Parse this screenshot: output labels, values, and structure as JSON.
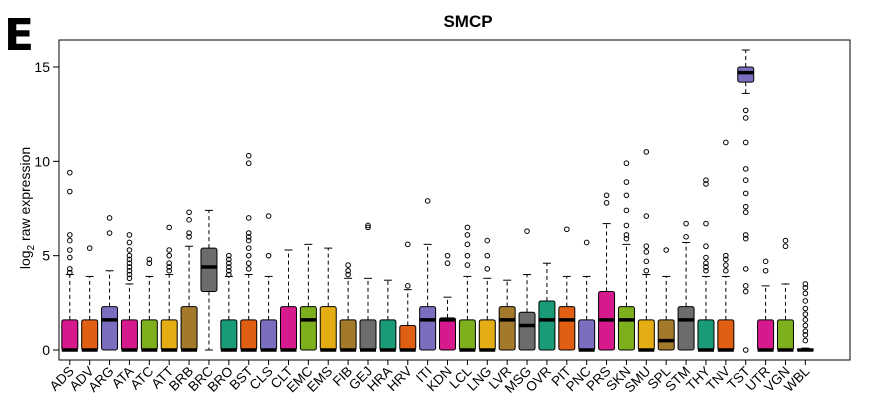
{
  "panel_label": "E",
  "chart_data": {
    "type": "box",
    "title": "SMCP",
    "xlabel": "",
    "ylabel_main": "log",
    "ylabel_sub": "2",
    "ylabel_rest": " raw expression",
    "ylim": [
      -0.5,
      16.5
    ],
    "yticks": [
      0,
      5,
      10,
      15
    ],
    "grid": false,
    "categories": [
      "ADS",
      "ADV",
      "ARG",
      "ATA",
      "ATC",
      "ATT",
      "BRB",
      "BRC",
      "BRO",
      "BST",
      "CLS",
      "CLT",
      "EMC",
      "EMS",
      "FIB",
      "GEJ",
      "HRA",
      "HRV",
      "ITI",
      "KDN",
      "LCL",
      "LNG",
      "LVR",
      "MSG",
      "OVR",
      "PIT",
      "PNC",
      "PRS",
      "SKN",
      "SMU",
      "SPL",
      "STM",
      "THY",
      "TNV",
      "TST",
      "UTR",
      "VGN",
      "WBL"
    ],
    "colors": [
      "#D6198D",
      "#E05F12",
      "#7A6FBE",
      "#D6198D",
      "#7EAF1C",
      "#E3AD13",
      "#A3792B",
      "#6C6C6C",
      "#1A9B78",
      "#E05F12",
      "#7A6FBE",
      "#D6198D",
      "#7EAF1C",
      "#E3AD13",
      "#A3792B",
      "#6C6C6C",
      "#1A9B78",
      "#E05F12",
      "#7A6FBE",
      "#D6198D",
      "#7EAF1C",
      "#E3AD13",
      "#A3792B",
      "#6C6C6C",
      "#1A9B78",
      "#E05F12",
      "#7A6FBE",
      "#D6198D",
      "#7EAF1C",
      "#E3AD13",
      "#A3792B",
      "#6C6C6C",
      "#1A9B78",
      "#E05F12",
      "#7A6FBE",
      "#D6198D",
      "#7EAF1C",
      "#E3AD13"
    ],
    "boxes": [
      {
        "q1": 0,
        "median": 0,
        "q3": 1.6,
        "whisker_low": 0,
        "whisker_high": 4.0,
        "outliers": [
          4.1,
          4.3,
          4.9,
          5.3,
          5.8,
          6.1,
          8.4,
          9.4
        ]
      },
      {
        "q1": 0,
        "median": 0,
        "q3": 1.6,
        "whisker_low": 0,
        "whisker_high": 3.9,
        "outliers": [
          5.4
        ]
      },
      {
        "q1": 0,
        "median": 1.6,
        "q3": 2.3,
        "whisker_low": 0,
        "whisker_high": 4.2,
        "outliers": [
          6.2,
          7.0
        ]
      },
      {
        "q1": 0,
        "median": 0,
        "q3": 1.6,
        "whisker_low": 0,
        "whisker_high": 3.5,
        "outliers": [
          3.8,
          4.0,
          4.2,
          4.4,
          4.6,
          4.8,
          5.0,
          5.3,
          5.7,
          6.1
        ]
      },
      {
        "q1": 0,
        "median": 0,
        "q3": 1.6,
        "whisker_low": 0,
        "whisker_high": 3.9,
        "outliers": [
          4.6,
          4.8
        ]
      },
      {
        "q1": 0,
        "median": 0,
        "q3": 1.6,
        "whisker_low": 0,
        "whisker_high": 4.0,
        "outliers": [
          4.2,
          4.4,
          4.6,
          5.0,
          5.3,
          6.5
        ]
      },
      {
        "q1": 0,
        "median": 0,
        "q3": 2.3,
        "whisker_low": 0,
        "whisker_high": 5.5,
        "outliers": [
          6.0,
          6.2,
          6.9,
          7.3
        ]
      },
      {
        "q1": 3.1,
        "median": 4.4,
        "q3": 5.4,
        "whisker_low": 0,
        "whisker_high": 7.4,
        "outliers": []
      },
      {
        "q1": 0,
        "median": 0,
        "q3": 1.6,
        "whisker_low": 0,
        "whisker_high": 3.9,
        "outliers": [
          4.0,
          4.2,
          4.4,
          4.6,
          4.8,
          5.0
        ]
      },
      {
        "q1": 0,
        "median": 0,
        "q3": 1.6,
        "whisker_low": 0,
        "whisker_high": 4.0,
        "outliers": [
          4.3,
          4.6,
          5.0,
          5.4,
          5.8,
          6.0,
          6.2,
          7.0,
          9.9,
          10.3
        ]
      },
      {
        "q1": 0,
        "median": 0,
        "q3": 1.6,
        "whisker_low": 0,
        "whisker_high": 3.9,
        "outliers": [
          5.0,
          7.1
        ]
      },
      {
        "q1": 0,
        "median": 0,
        "q3": 2.3,
        "whisker_low": 0,
        "whisker_high": 5.3,
        "outliers": []
      },
      {
        "q1": 0,
        "median": 1.6,
        "q3": 2.3,
        "whisker_low": 0,
        "whisker_high": 5.6,
        "outliers": []
      },
      {
        "q1": 0,
        "median": 0,
        "q3": 2.3,
        "whisker_low": 0,
        "whisker_high": 5.4,
        "outliers": []
      },
      {
        "q1": 0,
        "median": 0,
        "q3": 1.6,
        "whisker_low": 0,
        "whisker_high": 3.8,
        "outliers": [
          4.0,
          4.2,
          4.5
        ]
      },
      {
        "q1": 0,
        "median": 0,
        "q3": 1.6,
        "whisker_low": 0,
        "whisker_high": 3.8,
        "outliers": [
          6.5,
          6.6
        ]
      },
      {
        "q1": 0,
        "median": 0,
        "q3": 1.6,
        "whisker_low": 0,
        "whisker_high": 3.7,
        "outliers": []
      },
      {
        "q1": 0,
        "median": 0,
        "q3": 1.3,
        "whisker_low": 0,
        "whisker_high": 3.2,
        "outliers": [
          3.4,
          5.6
        ]
      },
      {
        "q1": 0,
        "median": 1.6,
        "q3": 2.3,
        "whisker_low": 0,
        "whisker_high": 5.6,
        "outliers": [
          7.9
        ]
      },
      {
        "q1": 0,
        "median": 1.6,
        "q3": 1.7,
        "whisker_low": 0,
        "whisker_high": 2.8,
        "outliers": [
          4.6,
          5.0
        ]
      },
      {
        "q1": 0,
        "median": 0,
        "q3": 1.6,
        "whisker_low": 0,
        "whisker_high": 3.9,
        "outliers": [
          4.5,
          5.0,
          5.6,
          6.1,
          6.5
        ]
      },
      {
        "q1": 0,
        "median": 0,
        "q3": 1.6,
        "whisker_low": 0,
        "whisker_high": 3.8,
        "outliers": [
          4.3,
          5.0,
          5.8
        ]
      },
      {
        "q1": 0,
        "median": 1.6,
        "q3": 2.3,
        "whisker_low": 0,
        "whisker_high": 3.7,
        "outliers": []
      },
      {
        "q1": 0,
        "median": 1.3,
        "q3": 2.0,
        "whisker_low": 0,
        "whisker_high": 4.0,
        "outliers": [
          6.3
        ]
      },
      {
        "q1": 0,
        "median": 1.6,
        "q3": 2.6,
        "whisker_low": 0,
        "whisker_high": 4.6,
        "outliers": []
      },
      {
        "q1": 0,
        "median": 1.6,
        "q3": 2.3,
        "whisker_low": 0,
        "whisker_high": 3.9,
        "outliers": [
          6.4
        ]
      },
      {
        "q1": 0,
        "median": 0,
        "q3": 1.6,
        "whisker_low": 0,
        "whisker_high": 3.9,
        "outliers": [
          5.7
        ]
      },
      {
        "q1": 0,
        "median": 1.6,
        "q3": 3.1,
        "whisker_low": 0,
        "whisker_high": 6.7,
        "outliers": [
          7.8,
          8.2
        ]
      },
      {
        "q1": 0,
        "median": 1.6,
        "q3": 2.3,
        "whisker_low": 0,
        "whisker_high": 5.6,
        "outliers": [
          5.9,
          6.1,
          6.6,
          7.4,
          8.2,
          8.9,
          9.9
        ]
      },
      {
        "q1": 0,
        "median": 0,
        "q3": 1.6,
        "whisker_low": 0,
        "whisker_high": 4.0,
        "outliers": [
          4.2,
          4.7,
          5.2,
          5.5,
          7.1,
          10.5
        ]
      },
      {
        "q1": 0,
        "median": 0.5,
        "q3": 1.6,
        "whisker_low": 0,
        "whisker_high": 3.9,
        "outliers": [
          5.3
        ]
      },
      {
        "q1": 0,
        "median": 1.6,
        "q3": 2.3,
        "whisker_low": 0,
        "whisker_high": 5.7,
        "outliers": [
          6.0,
          6.7
        ]
      },
      {
        "q1": 0,
        "median": 0,
        "q3": 1.6,
        "whisker_low": 0,
        "whisker_high": 3.9,
        "outliers": [
          4.2,
          4.4,
          4.6,
          4.9,
          5.5,
          6.7,
          8.8,
          9.0
        ]
      },
      {
        "q1": 0,
        "median": 0,
        "q3": 1.6,
        "whisker_low": 0,
        "whisker_high": 3.9,
        "outliers": [
          4.2,
          4.5,
          4.8,
          5.0,
          11.0
        ]
      },
      {
        "q1": 14.2,
        "median": 14.7,
        "q3": 15.0,
        "whisker_low": 13.6,
        "whisker_high": 15.9,
        "outliers": [
          0,
          3.1,
          3.4,
          4.3,
          5.9,
          6.1,
          7.3,
          7.6,
          8.3,
          9.0,
          9.6,
          11.0,
          12.3,
          12.7
        ]
      },
      {
        "q1": 0,
        "median": 0,
        "q3": 1.6,
        "whisker_low": 0,
        "whisker_high": 3.4,
        "outliers": [
          4.2,
          4.7
        ]
      },
      {
        "q1": 0,
        "median": 0,
        "q3": 1.6,
        "whisker_low": 0,
        "whisker_high": 3.5,
        "outliers": [
          5.5,
          5.8
        ]
      },
      {
        "q1": 0,
        "median": 0,
        "q3": 0.05,
        "whisker_low": 0,
        "whisker_high": 0.1,
        "outliers": [
          0.5,
          0.8,
          1.0,
          1.3,
          1.6,
          1.9,
          2.2,
          2.6,
          3.0,
          3.3,
          3.5
        ]
      }
    ]
  }
}
